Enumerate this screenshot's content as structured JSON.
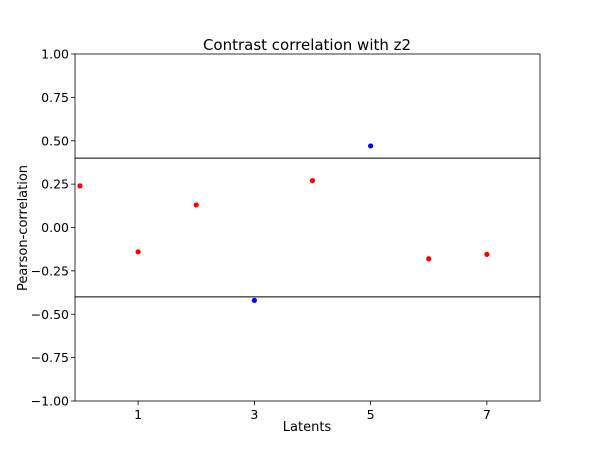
{
  "chart_data": {
    "type": "scatter",
    "title": "Contrast correlation with z2",
    "xlabel": "Latents",
    "ylabel": "Pearson-correlation",
    "xlim": [
      0,
      8
    ],
    "ylim": [
      -1.0,
      1.0
    ],
    "xticks": [
      1,
      3,
      5,
      7
    ],
    "xtick_labels": [
      "1",
      "3",
      "5",
      "7"
    ],
    "yticks": [
      1.0,
      0.75,
      0.5,
      0.25,
      0.0,
      -0.25,
      -0.5,
      -0.75,
      -1.0
    ],
    "ytick_labels": [
      "1.00",
      "0.75",
      "0.50",
      "0.25",
      "0.00",
      "−0.25",
      "−0.50",
      "−0.75",
      "−1.00"
    ],
    "grid": false,
    "thresholds": [
      0.4,
      -0.4
    ],
    "threshold_color": "#000000",
    "points": [
      {
        "x": 0,
        "y": 0.24,
        "color": "#ff0000"
      },
      {
        "x": 1,
        "y": -0.14,
        "color": "#ff0000"
      },
      {
        "x": 2,
        "y": 0.13,
        "color": "#ff0000"
      },
      {
        "x": 3,
        "y": -0.42,
        "color": "#0000ff"
      },
      {
        "x": 4,
        "y": 0.27,
        "color": "#ff0000"
      },
      {
        "x": 5,
        "y": 0.47,
        "color": "#0000ff"
      },
      {
        "x": 6,
        "y": -0.18,
        "color": "#ff0000"
      },
      {
        "x": 7,
        "y": -0.155,
        "color": "#ff0000"
      }
    ]
  }
}
